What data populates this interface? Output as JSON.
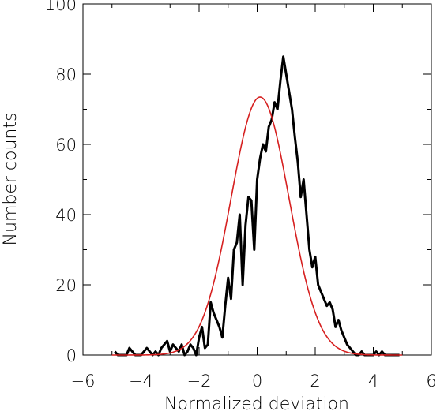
{
  "chart_data": {
    "type": "line",
    "title": "",
    "xlabel": "Normalized deviation",
    "ylabel": "Number counts",
    "xlim": [
      -6,
      6
    ],
    "ylim": [
      0,
      100
    ],
    "x_ticks": [
      -6,
      -4,
      -2,
      0,
      2,
      4,
      6
    ],
    "x_tick_labels": [
      "−6",
      "−4",
      "−2",
      "0",
      "2",
      "4",
      "6"
    ],
    "y_ticks": [
      0,
      20,
      40,
      60,
      80,
      100
    ],
    "y_tick_labels": [
      "0",
      "20",
      "40",
      "60",
      "80",
      "100"
    ],
    "grid": false,
    "legend": false,
    "series": [
      {
        "color": "#000000",
        "style": "histogram",
        "x": [
          -4.9,
          -4.8,
          -4.7,
          -4.6,
          -4.5,
          -4.4,
          -4.3,
          -4.2,
          -4.1,
          -4.0,
          -3.9,
          -3.8,
          -3.7,
          -3.6,
          -3.5,
          -3.4,
          -3.3,
          -3.2,
          -3.1,
          -3.0,
          -2.9,
          -2.8,
          -2.7,
          -2.6,
          -2.5,
          -2.4,
          -2.3,
          -2.2,
          -2.1,
          -2.0,
          -1.9,
          -1.8,
          -1.7,
          -1.6,
          -1.5,
          -1.4,
          -1.3,
          -1.2,
          -1.1,
          -1.0,
          -0.9,
          -0.8,
          -0.7,
          -0.6,
          -0.5,
          -0.4,
          -0.3,
          -0.2,
          -0.1,
          0.0,
          0.1,
          0.2,
          0.3,
          0.4,
          0.5,
          0.6,
          0.7,
          0.8,
          0.9,
          1.0,
          1.1,
          1.2,
          1.3,
          1.4,
          1.5,
          1.6,
          1.7,
          1.8,
          1.9,
          2.0,
          2.1,
          2.2,
          2.3,
          2.4,
          2.5,
          2.6,
          2.7,
          2.8,
          2.9,
          3.0,
          3.1,
          3.2,
          3.3,
          3.4,
          3.5,
          3.6,
          3.7,
          3.8,
          3.9,
          4.0,
          4.1,
          4.2,
          4.3,
          4.4,
          4.5,
          4.6,
          4.7,
          4.8,
          4.9
        ],
        "values": [
          1,
          0,
          0,
          0,
          0,
          2,
          1,
          0,
          0,
          0,
          1,
          2,
          1,
          0,
          1,
          0,
          2,
          3,
          4,
          1,
          3,
          2,
          1,
          3,
          0,
          1,
          3,
          2,
          0,
          5,
          8,
          2,
          3,
          15,
          12,
          10,
          8,
          5,
          14,
          22,
          16,
          30,
          32,
          40,
          20,
          37,
          45,
          44,
          30,
          50,
          56,
          60,
          58,
          65,
          67,
          72,
          70,
          78,
          85,
          80,
          75,
          70,
          62,
          55,
          45,
          50,
          40,
          30,
          25,
          28,
          20,
          18,
          16,
          14,
          15,
          13,
          8,
          10,
          7,
          5,
          3,
          2,
          1,
          0,
          0,
          1,
          0,
          0,
          0,
          0,
          1,
          0,
          1,
          0,
          0,
          0,
          0,
          0,
          0
        ]
      },
      {
        "color": "#d62020",
        "style": "gaussian-fit",
        "amplitude": 73.5,
        "mean": 0.1,
        "sigma": 1.0
      }
    ]
  }
}
